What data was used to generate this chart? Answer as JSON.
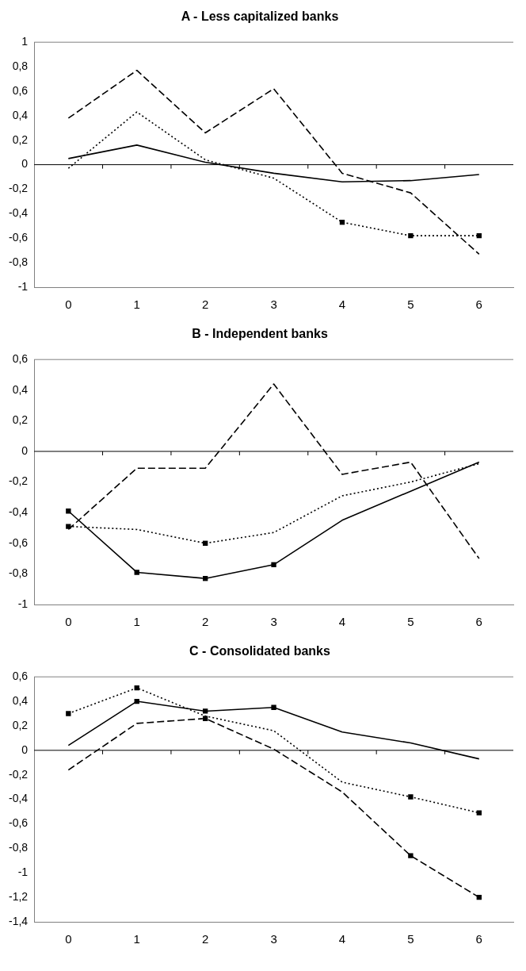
{
  "chart_data": [
    {
      "type": "line",
      "title": "A - Less capitalized banks",
      "categories": [
        "0",
        "1",
        "2",
        "3",
        "4",
        "5",
        "6"
      ],
      "ylim": [
        -1,
        1
      ],
      "yticks": [
        {
          "value": -1,
          "label": "-1"
        },
        {
          "value": -0.8,
          "label": "-0,8"
        },
        {
          "value": -0.6,
          "label": "-0,6"
        },
        {
          "value": -0.4,
          "label": "-0,4"
        },
        {
          "value": -0.2,
          "label": "-0,2"
        },
        {
          "value": 0,
          "label": "0"
        },
        {
          "value": 0.2,
          "label": "0,2"
        },
        {
          "value": 0.4,
          "label": "0,4"
        },
        {
          "value": 0.6,
          "label": "0,6"
        },
        {
          "value": 0.8,
          "label": "0,8"
        },
        {
          "value": 1,
          "label": "1"
        }
      ],
      "grid": false,
      "legend": false,
      "ref_lines": [
        {
          "axis": "y",
          "value": 0,
          "color": "#000000"
        }
      ],
      "series": [
        {
          "color": "#000000",
          "line_style": "solid",
          "marker": "none",
          "values": [
            0.05,
            0.16,
            0.02,
            -0.07,
            -0.14,
            -0.13,
            -0.08
          ]
        },
        {
          "color": "#000000",
          "line_style": "dashed",
          "marker": "none",
          "values": [
            0.38,
            0.77,
            0.26,
            0.62,
            -0.07,
            -0.23,
            -0.73
          ]
        },
        {
          "color": "#000000",
          "line_style": "dotted",
          "marker": "none",
          "values": [
            -0.03,
            0.43,
            0.04,
            -0.11,
            -0.47,
            -0.58,
            -0.58
          ]
        },
        {
          "type": "scatter",
          "color": "#000000",
          "marker": "square",
          "values": [
            null,
            null,
            null,
            null,
            -0.47,
            -0.58,
            -0.58
          ]
        }
      ]
    },
    {
      "type": "line",
      "title": "B - Independent banks",
      "categories": [
        "0",
        "1",
        "2",
        "3",
        "4",
        "5",
        "6"
      ],
      "ylim": [
        -1,
        0.6
      ],
      "yticks": [
        {
          "value": -1,
          "label": "-1"
        },
        {
          "value": -0.8,
          "label": "-0,8"
        },
        {
          "value": -0.6,
          "label": "-0,6"
        },
        {
          "value": -0.4,
          "label": "-0,4"
        },
        {
          "value": -0.2,
          "label": "-0,2"
        },
        {
          "value": 0,
          "label": "0"
        },
        {
          "value": 0.2,
          "label": "0,2"
        },
        {
          "value": 0.4,
          "label": "0,4"
        },
        {
          "value": 0.6,
          "label": "0,6"
        }
      ],
      "grid": false,
      "legend": false,
      "ref_lines": [
        {
          "axis": "y",
          "value": 0,
          "color": "#000000"
        }
      ],
      "series": [
        {
          "color": "#000000",
          "line_style": "solid",
          "marker": "none",
          "values": [
            -0.39,
            -0.79,
            -0.83,
            -0.74,
            -0.45,
            -0.26,
            -0.07
          ]
        },
        {
          "color": "#000000",
          "line_style": "dashed",
          "marker": "none",
          "values": [
            -0.51,
            -0.11,
            -0.11,
            0.44,
            -0.15,
            -0.07,
            -0.7
          ]
        },
        {
          "color": "#000000",
          "line_style": "dotted",
          "marker": "none",
          "values": [
            -0.49,
            -0.51,
            -0.6,
            -0.53,
            -0.29,
            -0.2,
            -0.08
          ]
        },
        {
          "type": "scatter",
          "color": "#000000",
          "marker": "square",
          "values": [
            -0.39,
            -0.79,
            -0.83,
            -0.74,
            null,
            null,
            null
          ]
        },
        {
          "type": "scatter",
          "color": "#000000",
          "marker": "square",
          "values": [
            -0.49,
            null,
            -0.6,
            null,
            null,
            null,
            null
          ]
        }
      ]
    },
    {
      "type": "line",
      "title": "C - Consolidated banks",
      "categories": [
        "0",
        "1",
        "2",
        "3",
        "4",
        "5",
        "6"
      ],
      "ylim": [
        -1.4,
        0.6
      ],
      "yticks": [
        {
          "value": -1.4,
          "label": "-1,4"
        },
        {
          "value": -1.2,
          "label": "-1,2"
        },
        {
          "value": -1,
          "label": "-1"
        },
        {
          "value": -0.8,
          "label": "-0,8"
        },
        {
          "value": -0.6,
          "label": "-0,6"
        },
        {
          "value": -0.4,
          "label": "-0,4"
        },
        {
          "value": -0.2,
          "label": "-0,2"
        },
        {
          "value": 0,
          "label": "0"
        },
        {
          "value": 0.2,
          "label": "0,2"
        },
        {
          "value": 0.4,
          "label": "0,4"
        },
        {
          "value": 0.6,
          "label": "0,6"
        }
      ],
      "grid": false,
      "legend": false,
      "ref_lines": [
        {
          "axis": "y",
          "value": 0,
          "color": "#000000"
        }
      ],
      "series": [
        {
          "color": "#000000",
          "line_style": "solid",
          "marker": "none",
          "values": [
            0.04,
            0.4,
            0.32,
            0.35,
            0.15,
            0.06,
            -0.07
          ]
        },
        {
          "color": "#000000",
          "line_style": "dashed",
          "marker": "none",
          "values": [
            -0.16,
            0.22,
            0.26,
            0.01,
            -0.34,
            -0.86,
            -1.2
          ]
        },
        {
          "color": "#000000",
          "line_style": "dotted",
          "marker": "none",
          "values": [
            0.3,
            0.51,
            0.28,
            0.16,
            -0.26,
            -0.38,
            -0.51
          ]
        },
        {
          "type": "scatter",
          "color": "#000000",
          "marker": "square",
          "values": [
            null,
            0.4,
            0.32,
            0.35,
            null,
            null,
            null
          ]
        },
        {
          "type": "scatter",
          "color": "#000000",
          "marker": "square",
          "values": [
            null,
            null,
            0.26,
            null,
            null,
            -0.86,
            -1.2
          ]
        },
        {
          "type": "scatter",
          "color": "#000000",
          "marker": "square",
          "values": [
            0.3,
            0.51,
            null,
            null,
            null,
            -0.38,
            -0.51
          ]
        }
      ]
    }
  ]
}
